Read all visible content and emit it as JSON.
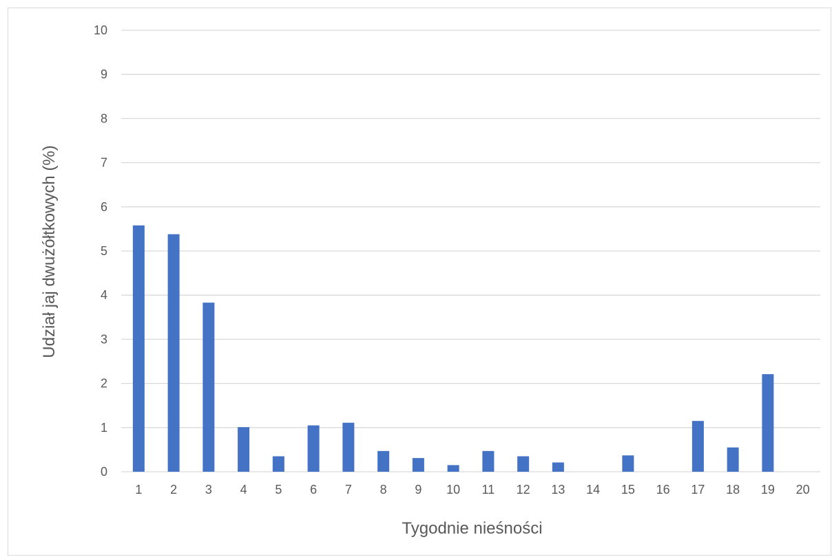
{
  "chart_data": {
    "type": "bar",
    "title": "",
    "xlabel": "Tygodnie nieśności",
    "ylabel": "Udział jaj dwużółtkowych (%)",
    "categories": [
      "1",
      "2",
      "3",
      "4",
      "5",
      "6",
      "7",
      "8",
      "9",
      "10",
      "11",
      "12",
      "13",
      "14",
      "15",
      "16",
      "17",
      "18",
      "19",
      "20"
    ],
    "values": [
      5.58,
      5.38,
      3.83,
      1.01,
      0.35,
      1.05,
      1.11,
      0.47,
      0.31,
      0.15,
      0.47,
      0.35,
      0.21,
      0,
      0.37,
      0,
      1.15,
      0.55,
      2.21,
      0
    ],
    "ylim": [
      0,
      10
    ],
    "yticks": [
      0,
      1,
      2,
      3,
      4,
      5,
      6,
      7,
      8,
      9,
      10
    ],
    "grid": true,
    "legend": "none",
    "colors": {
      "bar": "#4472C4",
      "grid": "#d9d9d9",
      "text": "#595959"
    }
  }
}
